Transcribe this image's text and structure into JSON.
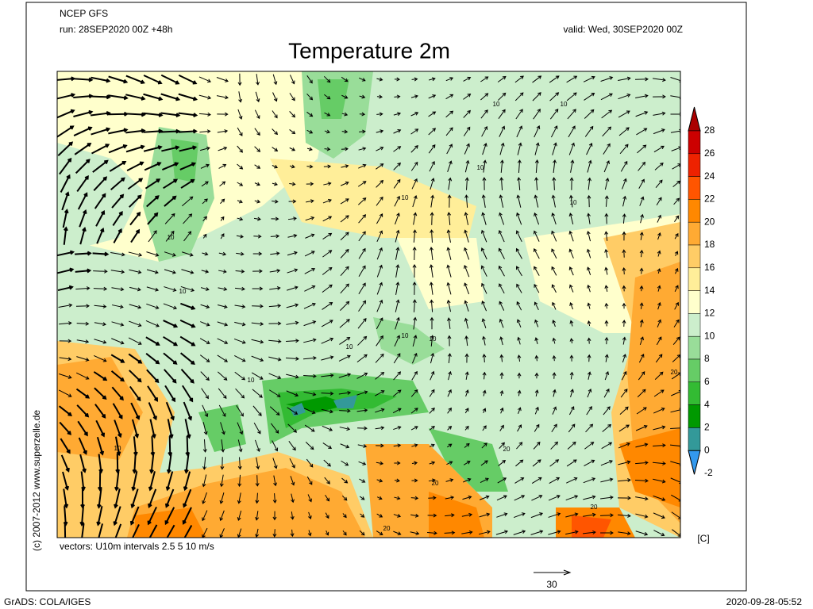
{
  "header": {
    "model": "NCEP GFS",
    "run": "run: 28SEP2020 00Z +48h",
    "valid": "valid: Wed, 30SEP2020 00Z",
    "title": "Temperature 2m"
  },
  "colorbar": {
    "labels": [
      28,
      26,
      24,
      22,
      20,
      18,
      16,
      14,
      12,
      10,
      8,
      6,
      4,
      2,
      0,
      -2
    ],
    "unit": "[C]"
  },
  "map": {
    "contour_labels": [
      "10",
      "10",
      "10",
      "10",
      "10",
      "10",
      "10",
      "10",
      "10",
      "10",
      "10",
      "10",
      "20",
      "20",
      "20",
      "20",
      "20"
    ]
  },
  "notes": {
    "vectors": "vectors: U10m intervals 2.5 5 10 m/s",
    "copyright": "(c) 2007-2012 www.superzelle.de",
    "ref_vector": "30"
  },
  "footer": {
    "left": "GrADS: COLA/IGES",
    "right": "2020-09-28-05:52"
  }
}
